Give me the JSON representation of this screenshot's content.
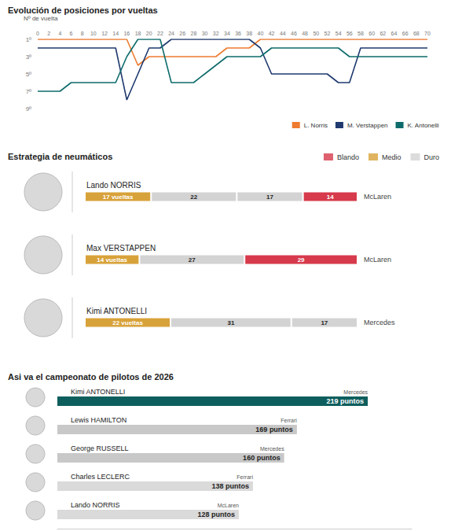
{
  "chart_data": [
    {
      "type": "line",
      "title": "Evolución de posiciones por vueltas",
      "xlabel": "Nº de vuelta",
      "x": [
        0,
        2,
        4,
        6,
        8,
        10,
        12,
        14,
        16,
        18,
        20,
        22,
        24,
        26,
        28,
        30,
        32,
        34,
        36,
        38,
        40,
        42,
        44,
        46,
        48,
        50,
        52,
        54,
        56,
        58,
        60,
        62,
        64,
        66,
        68,
        70
      ],
      "series": [
        {
          "name": "L. Norris",
          "color": "#ee7b30",
          "values": [
            1,
            1,
            1,
            1,
            1,
            1,
            1,
            1,
            1,
            4,
            3,
            3,
            3,
            3,
            3,
            3,
            3,
            2,
            2,
            2,
            1,
            1,
            1,
            1,
            1,
            1,
            1,
            1,
            1,
            1,
            1,
            1,
            1,
            1,
            1,
            1
          ]
        },
        {
          "name": "M. Verstappen",
          "color": "#1f3a6e",
          "values": [
            2,
            2,
            2,
            2,
            2,
            2,
            2,
            2,
            8,
            5,
            2,
            2,
            1,
            1,
            1,
            1,
            1,
            1,
            1,
            1,
            2,
            5,
            5,
            5,
            5,
            5,
            5,
            6,
            6,
            2,
            2,
            2,
            2,
            2,
            2,
            2
          ]
        },
        {
          "name": "K. Antonelli",
          "color": "#0e6b6b",
          "values": [
            7,
            7,
            7,
            6,
            6,
            6,
            6,
            6,
            3,
            1,
            1,
            1,
            6,
            6,
            6,
            5,
            4,
            3,
            3,
            3,
            3,
            2,
            2,
            2,
            2,
            2,
            2,
            2,
            3,
            3,
            3,
            3,
            3,
            3,
            3,
            3
          ]
        }
      ],
      "xlim": [
        0,
        70
      ],
      "xticks": [
        0,
        2,
        4,
        6,
        8,
        10,
        12,
        14,
        16,
        18,
        20,
        22,
        24,
        26,
        28,
        30,
        32,
        34,
        36,
        38,
        40,
        42,
        44,
        46,
        48,
        50,
        52,
        54,
        56,
        58,
        60,
        62,
        64,
        66,
        68,
        70
      ],
      "ylim": [
        9,
        1
      ],
      "yticks": [
        {
          "value": 1,
          "label": "1º"
        },
        {
          "value": 3,
          "label": "3º"
        },
        {
          "value": 5,
          "label": "5º"
        },
        {
          "value": 7,
          "label": "7º"
        },
        {
          "value": 9,
          "label": "9º"
        }
      ],
      "grid": false,
      "legend": "lower right"
    },
    {
      "type": "bar",
      "title": "Estrategia de neumáticos",
      "orientation": "horizontal",
      "stacked": true,
      "data_labels": true,
      "tick_labels": false,
      "legend": "upper right",
      "legend_items": [
        {
          "name": "Blando",
          "color": "#d63a4b"
        },
        {
          "name": "Medio",
          "color": "#d8a23a"
        },
        {
          "name": "Duro",
          "color": "#d3d3d3"
        }
      ],
      "categories": [
        "Lando NORRIS",
        "Max VERSTAPPEN",
        "Kimi ANTONELLI"
      ],
      "annotations": [
        "McLaren",
        "McLaren",
        "Mercedes"
      ],
      "rows": [
        {
          "values": [
            17,
            22,
            17,
            14
          ],
          "value_labels": [
            "17 vueltas",
            "22",
            "17",
            "14"
          ],
          "compounds": [
            "Medio",
            "Duro",
            "Duro",
            "Blando"
          ]
        },
        {
          "values": [
            14,
            27,
            29
          ],
          "value_labels": [
            "14 vueltas",
            "27",
            "29"
          ],
          "compounds": [
            "Medio",
            "Duro",
            "Blando"
          ]
        },
        {
          "values": [
            22,
            31,
            17
          ],
          "value_labels": [
            "22 vueltas",
            "31",
            "17"
          ],
          "compounds": [
            "Medio",
            "Duro",
            "Duro"
          ]
        }
      ],
      "xlim": [
        0,
        70
      ]
    },
    {
      "type": "bar",
      "title": "Asi va el campeonato de pilotos de 2026",
      "orientation": "horizontal",
      "data_labels": true,
      "tick_labels": false,
      "categories": [
        "Kimi ANTONELLI",
        "Lewis HAMILTON",
        "George RUSSELL",
        "Charles LECLERC",
        "Lando NORRIS"
      ],
      "annotations": [
        "Mercedes",
        "Ferrari",
        "Mercedes",
        "Ferrari",
        "McLaren"
      ],
      "values": [
        219,
        169,
        160,
        138,
        128
      ],
      "value_labels": [
        "219 puntos",
        "169 puntos",
        "160 puntos",
        "138 puntos",
        "128 puntos"
      ],
      "colors": [
        "#0e5e5e",
        "#c8c8c8",
        "#c8c8c8",
        "#dadada",
        "#dadada"
      ],
      "xlim": [
        0,
        250
      ]
    }
  ]
}
